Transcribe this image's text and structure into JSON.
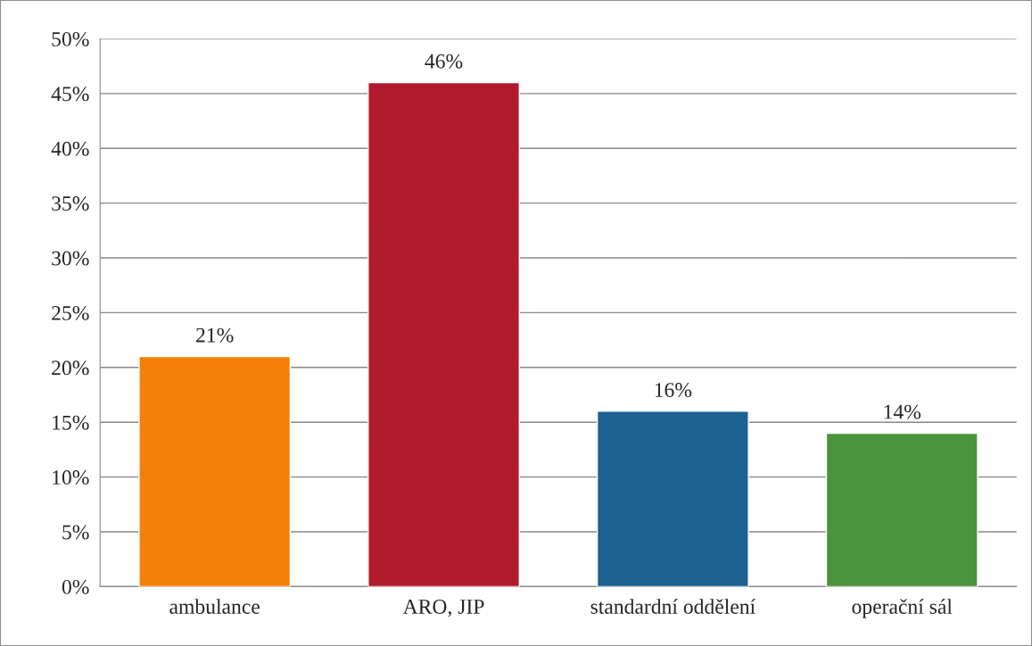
{
  "chart_data": {
    "type": "bar",
    "categories": [
      "ambulance",
      "ARO, JIP",
      "standardní oddělení",
      "operační sál"
    ],
    "values": [
      21,
      46,
      16,
      14
    ],
    "colors": [
      "#f57f0a",
      "#b01b2e",
      "#1c6190",
      "#4b933c"
    ],
    "value_labels": [
      "21%",
      "46%",
      "16%",
      "14%"
    ],
    "ylim": [
      0,
      50
    ],
    "yticks": [
      {
        "value": 0,
        "label": "0%"
      },
      {
        "value": 5,
        "label": "5%"
      },
      {
        "value": 10,
        "label": "10%"
      },
      {
        "value": 15,
        "label": "15%"
      },
      {
        "value": 20,
        "label": "20%"
      },
      {
        "value": 25,
        "label": "25%"
      },
      {
        "value": 30,
        "label": "30%"
      },
      {
        "value": 35,
        "label": "35%"
      },
      {
        "value": 40,
        "label": "40%"
      },
      {
        "value": 45,
        "label": "45%"
      },
      {
        "value": 50,
        "label": "50%"
      }
    ],
    "grid": "y",
    "legend": false
  }
}
